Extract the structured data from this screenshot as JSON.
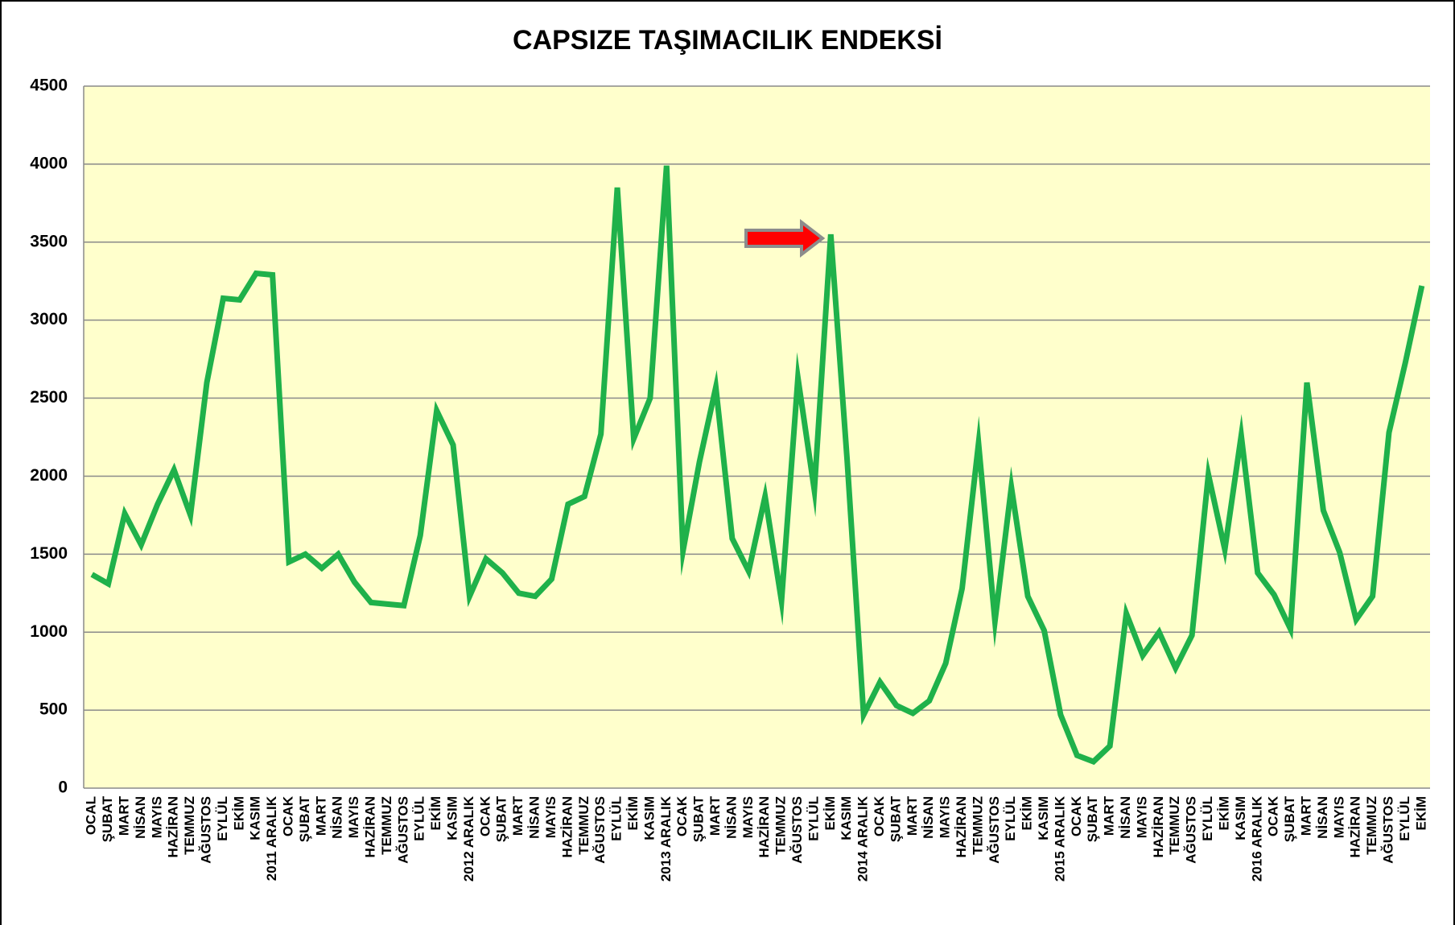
{
  "chart_data": {
    "type": "line",
    "title": "CAPSIZE TAŞIMACILIK ENDEKSİ",
    "categories": [
      "OCAL",
      "ŞUBAT",
      "MART",
      "NİSAN",
      "MAYIS",
      "HAZİRAN",
      "TEMMUZ",
      "AĞUSTOS",
      "EYLÜL",
      "EKİM",
      "KASIM",
      "2011 ARALIK",
      "OCAK",
      "ŞUBAT",
      "MART",
      "NİSAN",
      "MAYIS",
      "HAZİRAN",
      "TEMMUZ",
      "AĞUSTOS",
      "EYLÜL",
      "EKİM",
      "KASIM",
      "2012 ARALIK",
      "OCAK",
      "ŞUBAT",
      "MART",
      "NİSAN",
      "MAYIS",
      "HAZİRAN",
      "TEMMUZ",
      "AĞUSTOS",
      "EYLÜL",
      "EKİM",
      "KASIM",
      "2013 ARALIK",
      "OCAK",
      "ŞUBAT",
      "MART",
      "NİSAN",
      "MAYIS",
      "HAZİRAN",
      "TEMMUZ",
      "AĞUSTOS",
      "EYLÜL",
      "EKİM",
      "KASIM",
      "2014 ARALIK",
      "OCAK",
      "ŞUBAT",
      "MART",
      "NİSAN",
      "MAYIS",
      "HAZİRAN",
      "TEMMUZ",
      "AĞUSTOS",
      "EYLÜL",
      "EKİM",
      "KASIM",
      "2015 ARALIK",
      "OCAK",
      "ŞUBAT",
      "MART",
      "NİSAN",
      "MAYIS",
      "HAZİRAN",
      "TEMMUZ",
      "AĞUSTOS",
      "EYLÜL",
      "EKİM",
      "KASIM",
      "2016 ARALIK",
      "OCAK",
      "ŞUBAT",
      "MART",
      "NİSAN",
      "MAYIS",
      "HAZİRAN",
      "TEMMUZ",
      "AĞUSTOS",
      "EYLÜL",
      "EKİM"
    ],
    "values": [
      1370,
      1310,
      1760,
      1560,
      1820,
      2040,
      1750,
      2600,
      3140,
      3130,
      3300,
      3290,
      1450,
      1500,
      1410,
      1500,
      1320,
      1190,
      1180,
      1170,
      1620,
      2420,
      2200,
      1230,
      1470,
      1380,
      1250,
      1230,
      1340,
      1820,
      1870,
      2270,
      3850,
      2240,
      2500,
      3990,
      1520,
      2090,
      2570,
      1600,
      1390,
      1870,
      1200,
      2630,
      1910,
      3550,
      2100,
      470,
      680,
      530,
      480,
      560,
      800,
      1280,
      2210,
      1070,
      1930,
      1230,
      1010,
      470,
      210,
      170,
      270,
      1120,
      850,
      1000,
      770,
      980,
      2010,
      1530,
      2260,
      1380,
      1240,
      1020,
      2600,
      1780,
      1510,
      1080,
      1230,
      2280,
      2730,
      3220
    ],
    "color": "#1fb14a",
    "ylim": [
      0,
      4500
    ],
    "yticks": [
      0,
      500,
      1000,
      1500,
      2000,
      2500,
      3000,
      3500,
      4000,
      4500
    ],
    "grid": true
  }
}
